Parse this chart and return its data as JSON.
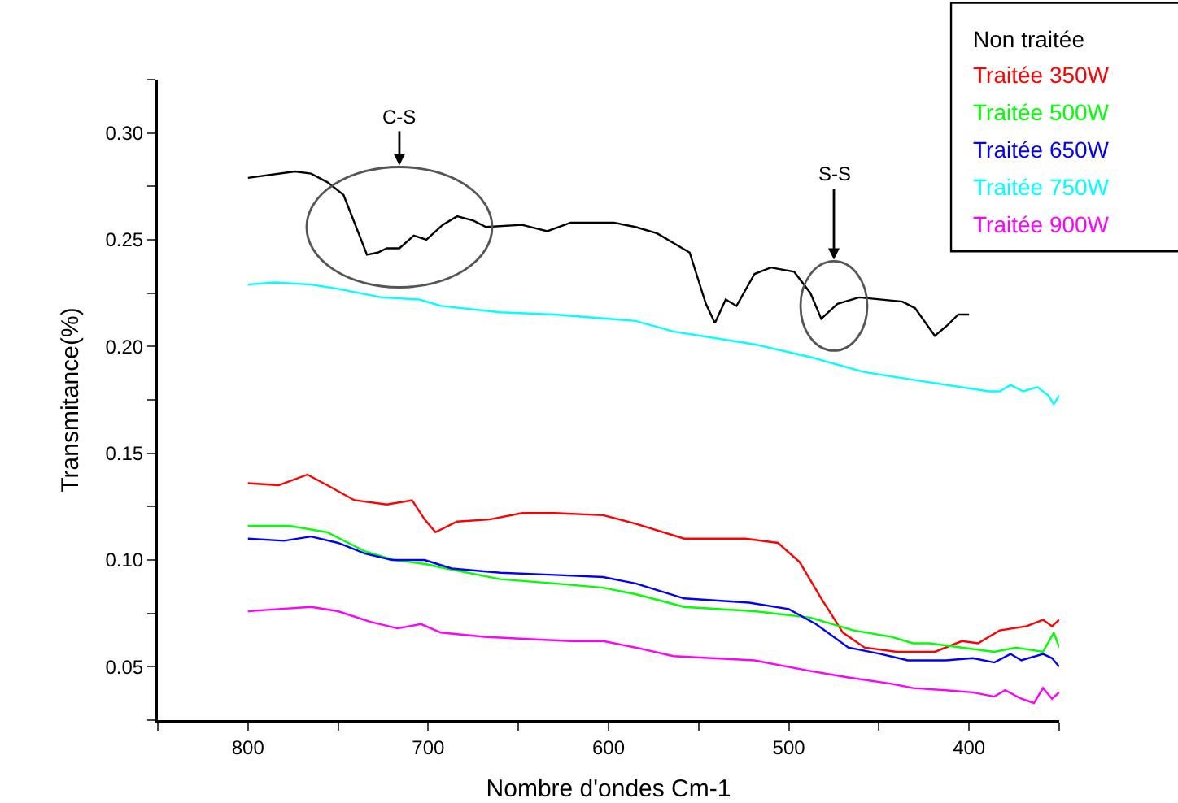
{
  "chart_data": {
    "type": "line",
    "xlabel": "Nombre d'ondes Cm-1",
    "ylabel": "Transmitance(%)",
    "xlim": [
      850,
      350
    ],
    "xticks": [
      {
        "value": 850,
        "label": null
      },
      800,
      {
        "value": 750,
        "label": null
      },
      700,
      {
        "value": 650,
        "label": null
      },
      600,
      {
        "value": 550,
        "label": null
      },
      500,
      {
        "value": 450,
        "label": null
      },
      400,
      {
        "value": 350,
        "label": null
      }
    ],
    "ylim": [
      0.025,
      0.325
    ],
    "yticks": [
      {
        "value": 0.025,
        "label": null
      },
      {
        "value": 0.05,
        "label": "0.05"
      },
      {
        "value": 0.075,
        "label": null
      },
      {
        "value": 0.1,
        "label": "0.10"
      },
      {
        "value": 0.125,
        "label": null
      },
      {
        "value": 0.15,
        "label": "0.15"
      },
      {
        "value": 0.175,
        "label": null
      },
      {
        "value": 0.2,
        "label": "0.20"
      },
      {
        "value": 0.225,
        "label": null
      },
      {
        "value": 0.25,
        "label": "0.25"
      },
      {
        "value": 0.275,
        "label": null
      },
      {
        "value": 0.3,
        "label": "0.30"
      },
      {
        "value": 0.325,
        "label": null
      }
    ],
    "grid": false,
    "legend": "top right",
    "marker": "none",
    "line_style": "solid",
    "annotations": [
      {
        "text": "C-S",
        "x": 716,
        "y": 0.246
      },
      {
        "text": "S-S",
        "x": 475,
        "y": 0.219
      }
    ],
    "series": [
      {
        "name": "Non traitée",
        "color": "#000000",
        "x": [
          800,
          774,
          765,
          756,
          747,
          740,
          734,
          728,
          723,
          716,
          708,
          701,
          692,
          684,
          675,
          668,
          648,
          634,
          621,
          597,
          585,
          573,
          555,
          546,
          541,
          535,
          529,
          519,
          510,
          497,
          488,
          482,
          473,
          461,
          437,
          430,
          419,
          412,
          406,
          400
        ],
        "values": [
          0.279,
          0.282,
          0.281,
          0.277,
          0.271,
          0.256,
          0.243,
          0.244,
          0.246,
          0.246,
          0.252,
          0.25,
          0.257,
          0.261,
          0.259,
          0.256,
          0.257,
          0.254,
          0.258,
          0.258,
          0.256,
          0.253,
          0.244,
          0.22,
          0.211,
          0.222,
          0.219,
          0.234,
          0.237,
          0.235,
          0.225,
          0.213,
          0.22,
          0.223,
          0.221,
          0.218,
          0.205,
          0.21,
          0.215,
          0.215
        ]
      },
      {
        "name": "Traitée 350W",
        "color": "#ff0000",
        "x": [
          800,
          783,
          767,
          756,
          741,
          723,
          709,
          702,
          696,
          684,
          666,
          648,
          630,
          603,
          585,
          558,
          524,
          506,
          494,
          482,
          470,
          458,
          440,
          419,
          404,
          395,
          383,
          368,
          359,
          354,
          350
        ],
        "values": [
          0.136,
          0.135,
          0.14,
          0.135,
          0.128,
          0.126,
          0.128,
          0.119,
          0.113,
          0.118,
          0.119,
          0.122,
          0.122,
          0.121,
          0.117,
          0.11,
          0.11,
          0.108,
          0.099,
          0.082,
          0.066,
          0.059,
          0.057,
          0.057,
          0.062,
          0.061,
          0.067,
          0.069,
          0.072,
          0.069,
          0.072
        ]
      },
      {
        "name": "Traitée 500W",
        "color": "#00ff00",
        "x": [
          800,
          777,
          756,
          735,
          719,
          701,
          690,
          660,
          630,
          603,
          585,
          558,
          519,
          488,
          464,
          443,
          431,
          422,
          404,
          386,
          374,
          359,
          353,
          350
        ],
        "values": [
          0.116,
          0.116,
          0.113,
          0.104,
          0.1,
          0.098,
          0.096,
          0.091,
          0.089,
          0.087,
          0.084,
          0.078,
          0.076,
          0.073,
          0.067,
          0.064,
          0.061,
          0.061,
          0.059,
          0.057,
          0.059,
          0.057,
          0.066,
          0.059
        ]
      },
      {
        "name": "Traitée 650W",
        "color": "#0000ff",
        "x": [
          800,
          780,
          765,
          750,
          735,
          720,
          702,
          687,
          660,
          630,
          603,
          585,
          558,
          522,
          500,
          485,
          467,
          449,
          434,
          413,
          398,
          386,
          377,
          371,
          359,
          354,
          350
        ],
        "values": [
          0.11,
          0.109,
          0.111,
          0.108,
          0.103,
          0.1,
          0.1,
          0.096,
          0.094,
          0.093,
          0.092,
          0.089,
          0.082,
          0.08,
          0.077,
          0.07,
          0.059,
          0.056,
          0.053,
          0.053,
          0.054,
          0.052,
          0.056,
          0.053,
          0.056,
          0.054,
          0.05
        ]
      },
      {
        "name": "Traitée 750W",
        "color": "#00ffff",
        "x": [
          800,
          785,
          765,
          750,
          726,
          705,
          693,
          660,
          630,
          585,
          564,
          519,
          488,
          458,
          428,
          389,
          383,
          377,
          370,
          362,
          356,
          353,
          350
        ],
        "values": [
          0.229,
          0.23,
          0.229,
          0.227,
          0.223,
          0.222,
          0.219,
          0.216,
          0.215,
          0.212,
          0.207,
          0.201,
          0.195,
          0.188,
          0.184,
          0.179,
          0.179,
          0.182,
          0.179,
          0.181,
          0.177,
          0.173,
          0.177
        ]
      },
      {
        "name": "Traitée 900W",
        "color": "#ff00ff",
        "x": [
          800,
          783,
          765,
          750,
          732,
          717,
          704,
          693,
          669,
          645,
          621,
          603,
          585,
          564,
          519,
          488,
          467,
          443,
          431,
          413,
          398,
          386,
          380,
          371,
          364,
          359,
          354,
          350
        ],
        "values": [
          0.076,
          0.077,
          0.078,
          0.076,
          0.071,
          0.068,
          0.07,
          0.066,
          0.064,
          0.063,
          0.062,
          0.062,
          0.059,
          0.055,
          0.053,
          0.048,
          0.045,
          0.042,
          0.04,
          0.039,
          0.038,
          0.036,
          0.039,
          0.035,
          0.033,
          0.04,
          0.035,
          0.038
        ]
      }
    ]
  }
}
